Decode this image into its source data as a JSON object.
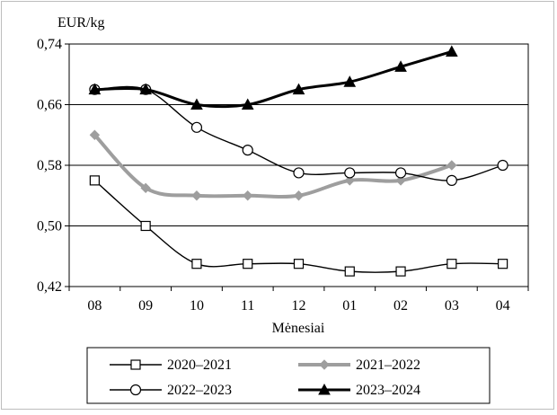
{
  "chart_data": {
    "type": "line",
    "ylabel": "EUR/kg",
    "xlabel": "Mėnesiai",
    "categories": [
      "08",
      "09",
      "10",
      "11",
      "12",
      "01",
      "02",
      "03",
      "04"
    ],
    "ylim": [
      0.42,
      0.74
    ],
    "yticks": [
      0.42,
      0.5,
      0.58,
      0.66,
      0.74
    ],
    "ytick_labels": [
      "0,42",
      "0,50",
      "0,58",
      "0,66",
      "0,74"
    ],
    "grid": true,
    "legend_position": "bottom",
    "series": [
      {
        "name": "2020–2021",
        "values": [
          0.56,
          0.5,
          0.45,
          0.45,
          0.45,
          0.44,
          0.44,
          0.45,
          0.45
        ],
        "color": "#000000",
        "marker": "square",
        "marker_fill": "#ffffff"
      },
      {
        "name": "2021–2022",
        "values": [
          0.62,
          0.55,
          0.54,
          0.54,
          0.54,
          0.56,
          0.56,
          0.58,
          null
        ],
        "color": "#9e9e9e",
        "marker": "diamond",
        "marker_fill": "#9e9e9e"
      },
      {
        "name": "2022–2023",
        "values": [
          0.68,
          0.68,
          0.63,
          0.6,
          0.57,
          0.57,
          0.57,
          0.56,
          0.58
        ],
        "color": "#000000",
        "marker": "circle",
        "marker_fill": "#ffffff"
      },
      {
        "name": "2023–2024",
        "values": [
          0.68,
          0.68,
          0.66,
          0.66,
          0.68,
          0.69,
          0.71,
          0.73,
          null
        ],
        "color": "#000000",
        "marker": "triangle",
        "marker_fill": "#000000"
      }
    ]
  }
}
